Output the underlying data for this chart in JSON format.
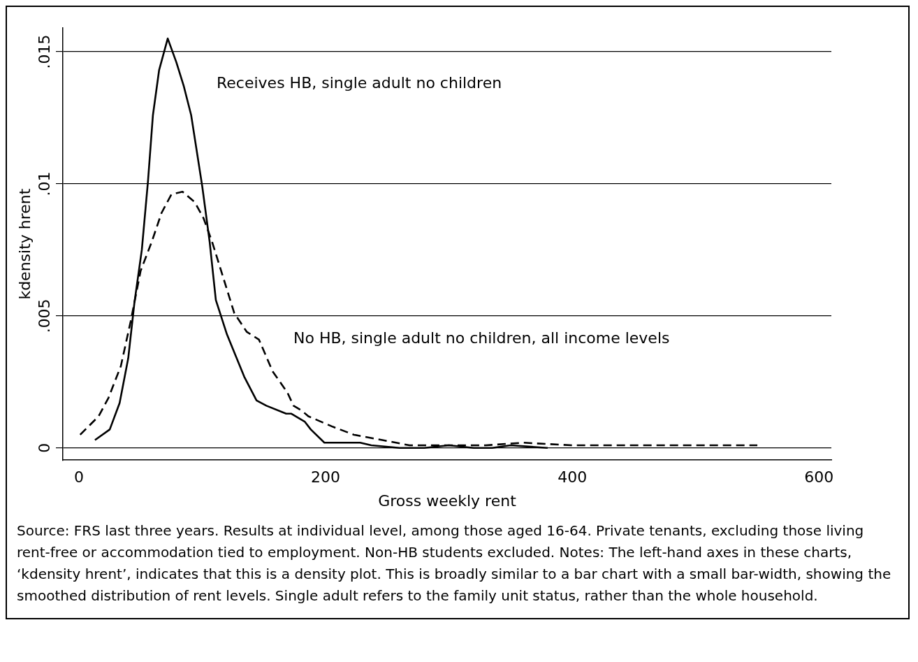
{
  "chart_data": {
    "type": "line",
    "xlabel": "Gross weekly rent",
    "ylabel": "kdensity hrent",
    "xlim": [
      -13,
      610
    ],
    "xticks": [
      0,
      200,
      400,
      600
    ],
    "ylim": [
      -0.00046,
      0.0159
    ],
    "yticks": [
      {
        "value": 0,
        "label": "0"
      },
      {
        "value": 0.005,
        "label": ".005"
      },
      {
        "value": 0.01,
        "label": ".01"
      },
      {
        "value": 0.015,
        "label": ".015"
      }
    ],
    "grid": "y",
    "legend": false,
    "marker": "none",
    "series": [
      {
        "name": "Receives HB, single adult no children",
        "color": "#000000",
        "line_style": "solid",
        "x": [
          13,
          25,
          33,
          40,
          45,
          51,
          56,
          60,
          65,
          72,
          79,
          85,
          91,
          95,
          100,
          106,
          111,
          120,
          134,
          144,
          152,
          168,
          172,
          183,
          188,
          199,
          228,
          237,
          260,
          280,
          300,
          320,
          335,
          350,
          380
        ],
        "values": [
          0.0003,
          0.0007,
          0.0017,
          0.0034,
          0.0055,
          0.0075,
          0.0101,
          0.0126,
          0.0143,
          0.0155,
          0.0146,
          0.0137,
          0.0126,
          0.0114,
          0.0099,
          0.0078,
          0.0056,
          0.0043,
          0.0027,
          0.0018,
          0.0016,
          0.0013,
          0.0013,
          0.001,
          0.0007,
          0.0002,
          0.0002,
          0.0001,
          0,
          0,
          0.0001,
          0,
          0,
          0.0001,
          0
        ]
      },
      {
        "name": "No HB, single adult no children, all income levels",
        "color": "#000000",
        "line_style": "dashed",
        "x": [
          1,
          16,
          24,
          34,
          42,
          50,
          59,
          67,
          75,
          84,
          94,
          101,
          108,
          116,
          126,
          136,
          146,
          157,
          169,
          174,
          181,
          186,
          206,
          223,
          246,
          268,
          300,
          330,
          360,
          400,
          450,
          500,
          550
        ],
        "values": [
          0.0005,
          0.0012,
          0.0019,
          0.0031,
          0.0048,
          0.0067,
          0.0078,
          0.0089,
          0.0096,
          0.0097,
          0.0093,
          0.0087,
          0.0078,
          0.0066,
          0.0051,
          0.0044,
          0.0041,
          0.0029,
          0.0021,
          0.0016,
          0.0014,
          0.0012,
          0.0008,
          0.0005,
          0.0003,
          0.0001,
          0.0001,
          0.0001,
          0.0002,
          0.0001,
          0.0001,
          0.0001,
          0.0001
        ]
      }
    ],
    "annotations": [
      "Source: FRS last three years. Results at individual level, among those aged 16-64. Private tenants, excluding those living rent-free or accommodation tied to employment. Non-HB students excluded. Notes: The left-hand axes in these charts, ‘kdensity hrent’, indicates that this is a density plot. This is broadly similar to a bar chart with a small bar-width, showing the smoothed distribution of rent levels. Single adult refers to the family unit status, rather than the whole household."
    ]
  }
}
